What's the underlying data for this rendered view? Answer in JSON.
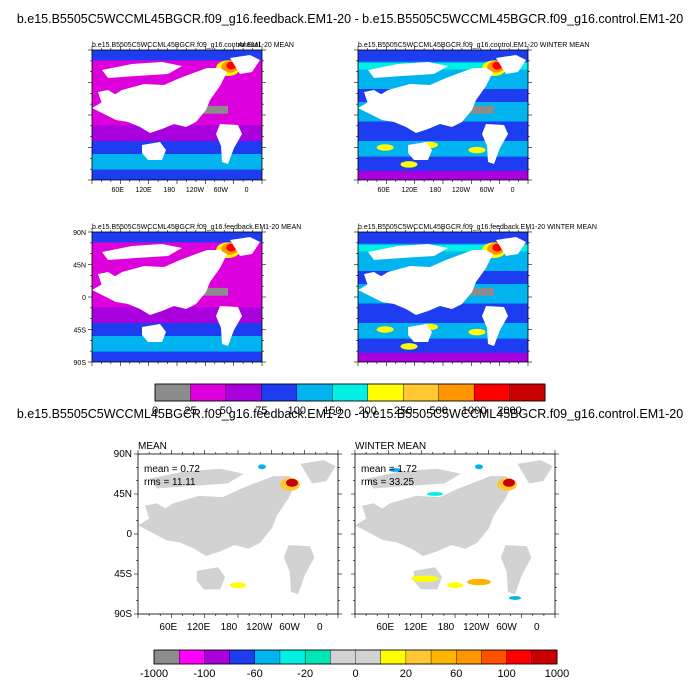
{
  "top_title": "b.e15.B5505C5WCCML45BGCR.f09_g16.feedback.EM1-20 - b.e15.B5505C5WCCML45BGCR.f09_g16.control.EM1-20",
  "bottom_title": "b.e15.B5505C5WCCML45BGCR.f09_g16.feedback.EM1-20 - b.e15.B5505C5WCCML45BGCR.f09_g16.control.EM1-20",
  "chart_data": [
    {
      "type": "heatmap",
      "id": "control-mean",
      "title": "b.e15.B5505C5WCCML45BGCR.f09_g16.control.EM1-20 MEAN",
      "extra_label": "Annual",
      "x_ticks": [
        "60E",
        "120E",
        "180",
        "120W",
        "60W",
        "0"
      ],
      "y_ticks": []
    },
    {
      "type": "heatmap",
      "id": "control-winter",
      "title": "b.e15.B5505C5WCCML45BGCR.f09_g16.control.EM1-20 WINTER MEAN",
      "x_ticks": [
        "60E",
        "120E",
        "180",
        "120W",
        "60W",
        "0"
      ],
      "y_ticks": []
    },
    {
      "type": "heatmap",
      "id": "feedback-mean",
      "title": "b.e15.B5505C5WCCML45BGCR.f09_g16.feedback.EM1-20 MEAN",
      "x_ticks": [],
      "y_ticks": [
        "90N",
        "45N",
        "0",
        "45S",
        "90S"
      ]
    },
    {
      "type": "heatmap",
      "id": "feedback-winter",
      "title": "b.e15.B5505C5WCCML45BGCR.f09_g16.feedback.EM1-20 WINTER MEAN",
      "x_ticks": [],
      "y_ticks": []
    },
    {
      "type": "heatmap",
      "id": "diff-mean",
      "title": "MEAN",
      "mean_text": "mean = 0.72",
      "rms_text": "rms = 11.11",
      "x_ticks": [
        "60E",
        "120E",
        "180",
        "120W",
        "60W",
        "0"
      ],
      "y_ticks": [
        "90N",
        "45N",
        "0",
        "45S",
        "90S"
      ]
    },
    {
      "type": "heatmap",
      "id": "diff-winter",
      "title": "WINTER MEAN",
      "mean_text": "mean = 1.72",
      "rms_text": "rms = 33.25",
      "x_ticks": [
        "60E",
        "120E",
        "180",
        "120W",
        "60W",
        "0"
      ],
      "y_ticks": []
    }
  ],
  "colorbar_top": {
    "labels": [
      "0",
      "25",
      "50",
      "75",
      "100",
      "150",
      "200",
      "250",
      "500",
      "1000",
      "2000"
    ],
    "colors": [
      "#8c8c8c",
      "#dd00dd",
      "#aa00dd",
      "#1e3cf0",
      "#00b4f0",
      "#00f0e6",
      "#ffff00",
      "#ffc832",
      "#ff9600",
      "#ff0000",
      "#c80000"
    ]
  },
  "colorbar_bottom": {
    "labels": [
      "-1000",
      "-100",
      "-60",
      "-20",
      "0",
      "20",
      "60",
      "100",
      "1000"
    ],
    "colors": [
      "#8c8c8c",
      "#ff00ff",
      "#aa00dd",
      "#1e3cf0",
      "#00b4f0",
      "#00f0e6",
      "#00e6b4",
      "#d2d2d2",
      "#d2d2d2",
      "#ffff00",
      "#ffc832",
      "#ffb400",
      "#ff9600",
      "#ff5000",
      "#ff0000",
      "#c80000"
    ]
  }
}
